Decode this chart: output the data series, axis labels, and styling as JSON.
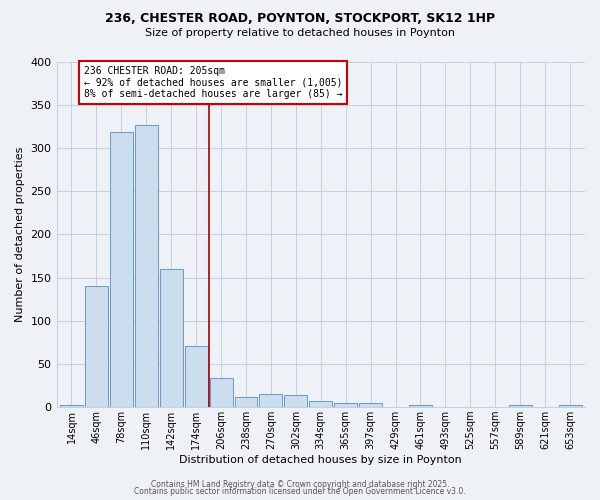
{
  "title1": "236, CHESTER ROAD, POYNTON, STOCKPORT, SK12 1HP",
  "title2": "Size of property relative to detached houses in Poynton",
  "xlabel": "Distribution of detached houses by size in Poynton",
  "ylabel": "Number of detached properties",
  "bar_labels": [
    "14sqm",
    "46sqm",
    "78sqm",
    "110sqm",
    "142sqm",
    "174sqm",
    "206sqm",
    "238sqm",
    "270sqm",
    "302sqm",
    "334sqm",
    "365sqm",
    "397sqm",
    "429sqm",
    "461sqm",
    "493sqm",
    "525sqm",
    "557sqm",
    "589sqm",
    "621sqm",
    "653sqm"
  ],
  "bar_values": [
    3,
    140,
    318,
    326,
    160,
    71,
    34,
    12,
    15,
    14,
    7,
    5,
    5,
    0,
    2,
    0,
    0,
    0,
    2,
    0,
    2
  ],
  "bar_color": "#ccdded",
  "bar_edge_color": "#6699cc",
  "annotation_title": "236 CHESTER ROAD: 205sqm",
  "annotation_line1": "← 92% of detached houses are smaller (1,005)",
  "annotation_line2": "8% of semi-detached houses are larger (85) →",
  "vline_x": 5.5,
  "vline_color": "#aa0000",
  "annotation_box_color": "#cc0000",
  "ylim": [
    0,
    400
  ],
  "yticks": [
    0,
    50,
    100,
    150,
    200,
    250,
    300,
    350,
    400
  ],
  "footer1": "Contains HM Land Registry data © Crown copyright and database right 2025.",
  "footer2": "Contains public sector information licensed under the Open Government Licence v3.0.",
  "background_color": "#eef2f7"
}
